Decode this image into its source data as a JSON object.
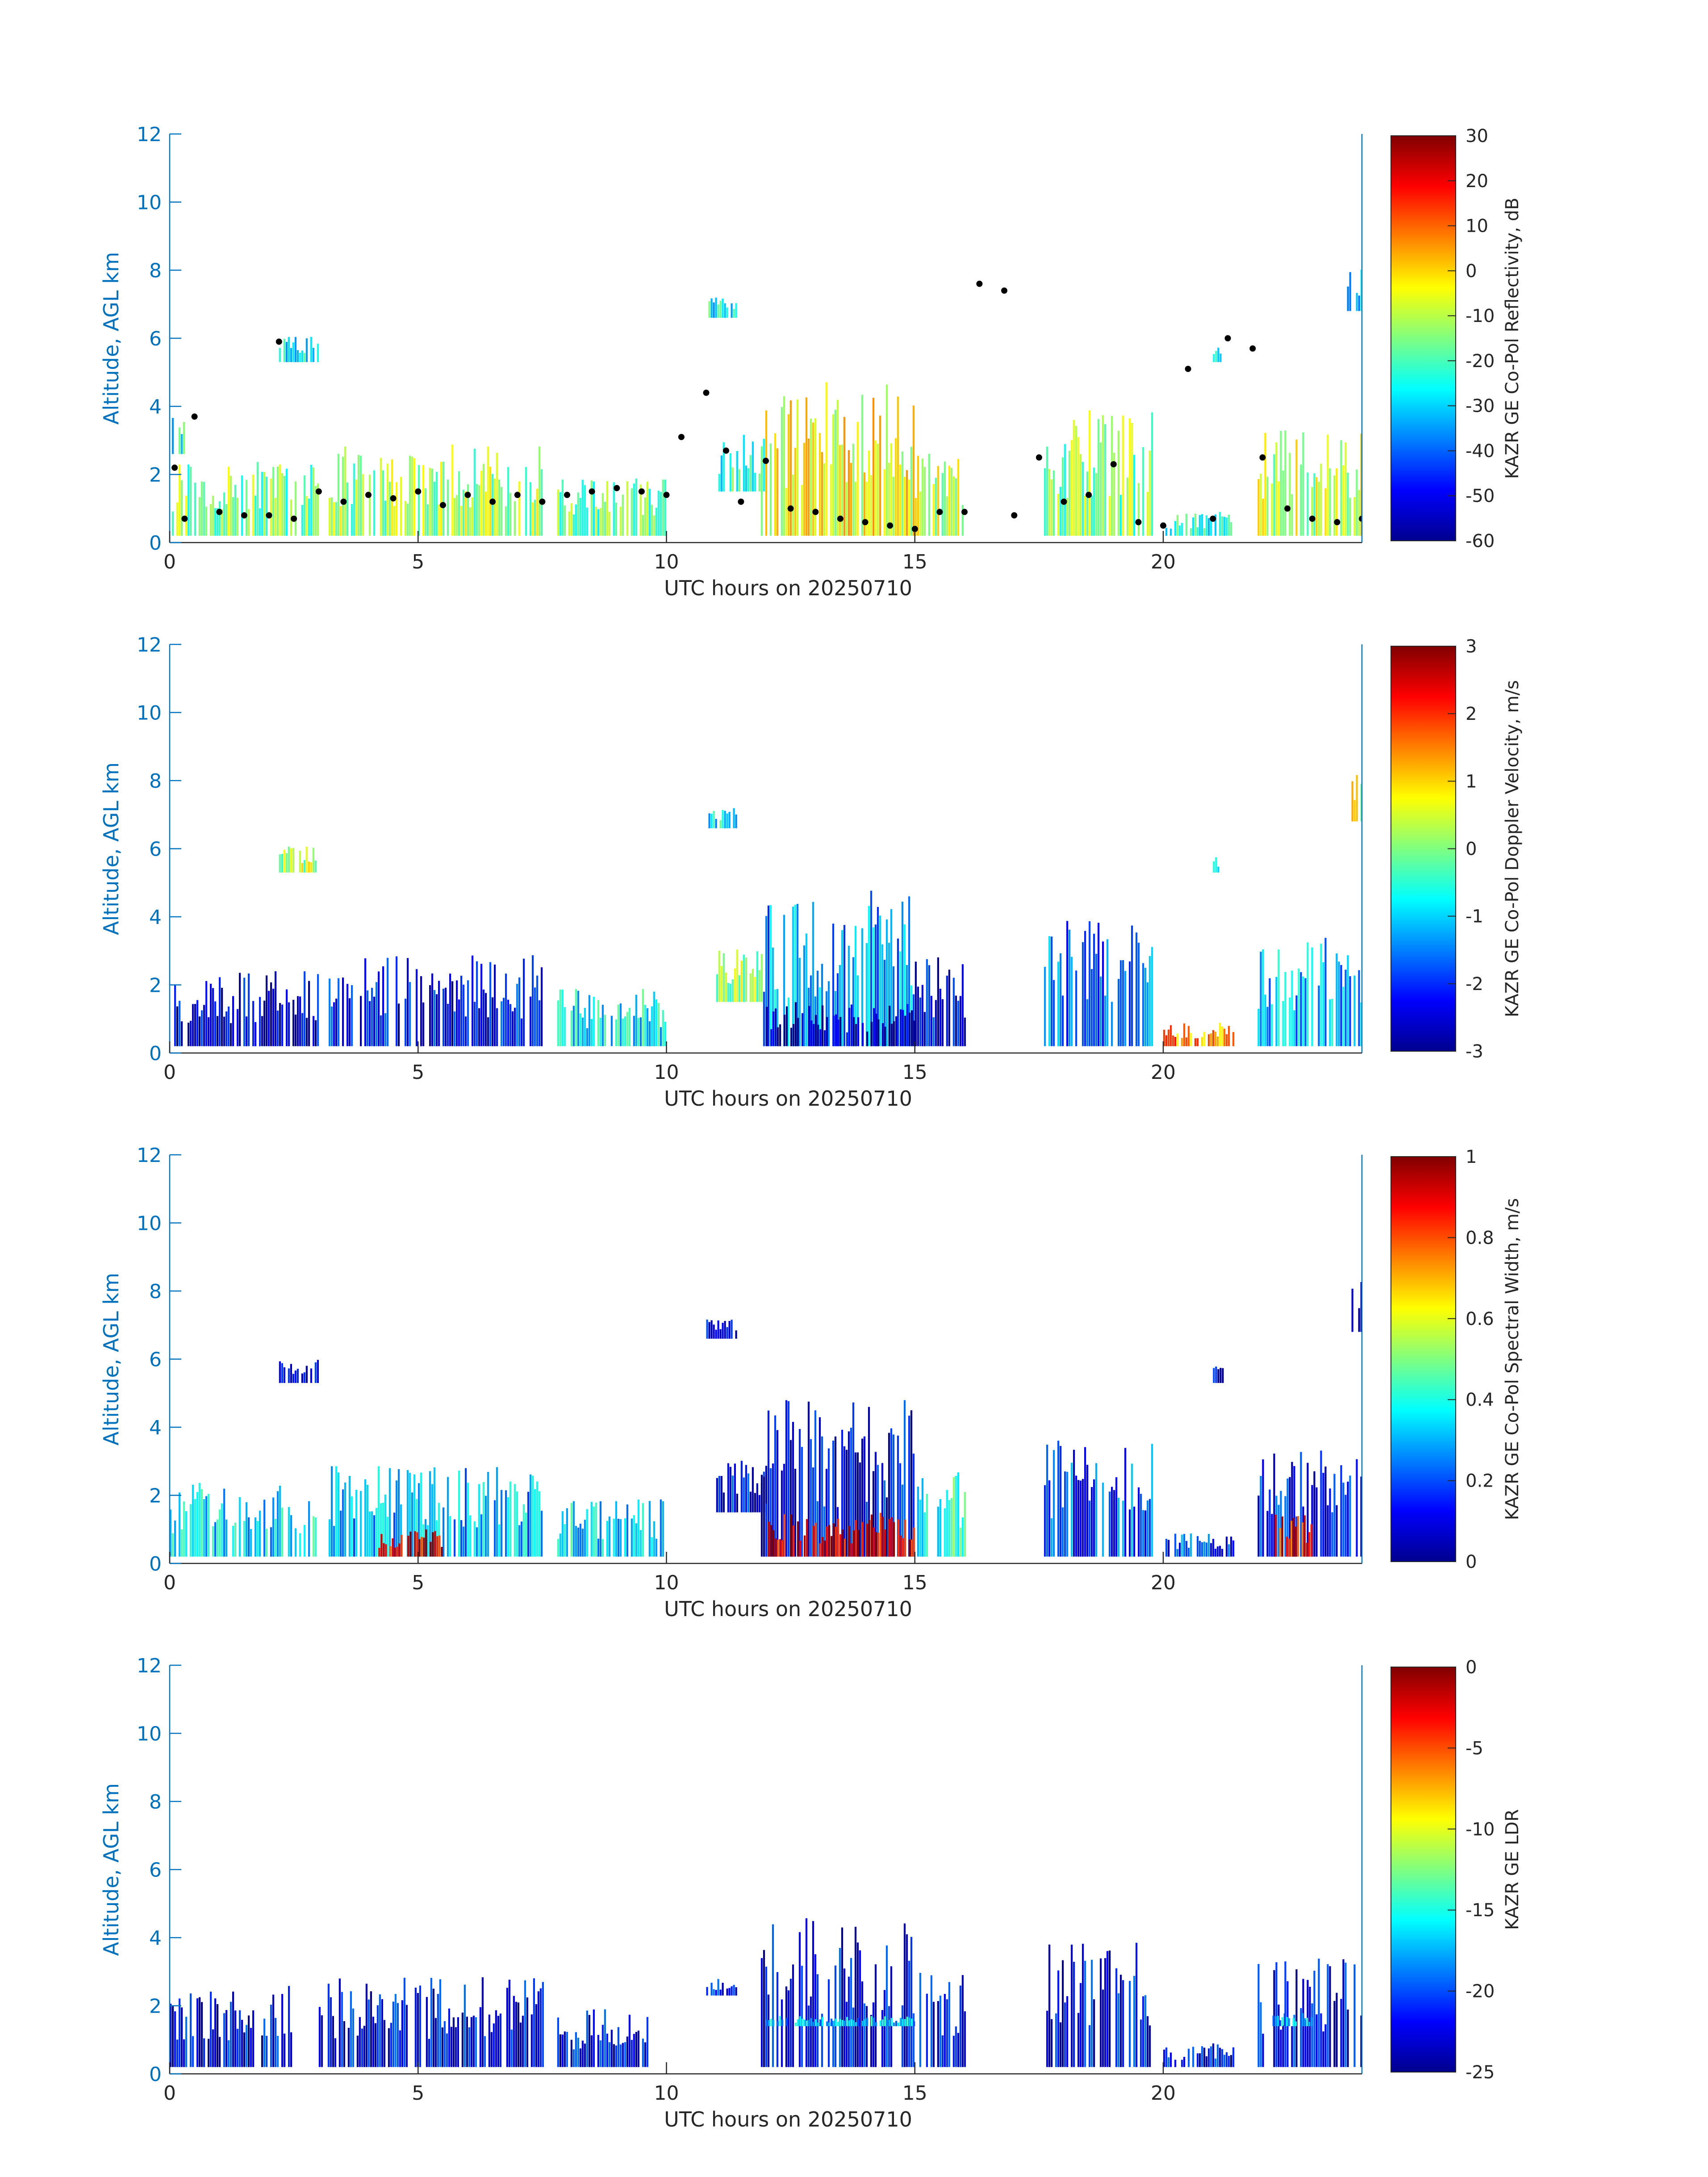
{
  "chart_data": [
    {
      "type": "heatmap",
      "x_label": "UTC hours on 20250710",
      "y_label": "Altitude, AGL km",
      "x_ticks": [
        0,
        5,
        10,
        15,
        20
      ],
      "y_ticks": [
        0,
        2,
        4,
        6,
        8,
        10,
        12
      ],
      "xlim": [
        0,
        24
      ],
      "ylim": [
        0,
        12
      ],
      "colorbar": {
        "label": "KAZR GE Co-Pol Reflectivity, dB",
        "ticks": [
          30,
          20,
          10,
          0,
          -10,
          -20,
          -30,
          -40,
          -50,
          -60
        ],
        "range": [
          -60,
          30
        ],
        "colormap": "jet"
      },
      "overlay": "black dots marking cloud base",
      "cloud_regions": [
        {
          "x0": 0.0,
          "x1": 0.3,
          "y0": 2.6,
          "y1": 3.7,
          "value": -25
        },
        {
          "x0": 0.0,
          "x1": 3.0,
          "y0": 0.2,
          "y1": 2.4,
          "value": -15
        },
        {
          "x0": 2.2,
          "x1": 3.0,
          "y0": 5.3,
          "y1": 6.1,
          "value": -28
        },
        {
          "x0": 3.2,
          "x1": 7.5,
          "y0": 0.2,
          "y1": 2.9,
          "value": -12
        },
        {
          "x0": 7.8,
          "x1": 10.0,
          "y0": 0.2,
          "y1": 1.9,
          "value": -18
        },
        {
          "x0": 10.8,
          "x1": 11.4,
          "y0": 6.6,
          "y1": 7.2,
          "value": -25
        },
        {
          "x0": 11.0,
          "x1": 12.0,
          "y0": 1.5,
          "y1": 3.2,
          "value": -22
        },
        {
          "x0": 11.9,
          "x1": 15.0,
          "y0": 0.2,
          "y1": 4.8,
          "value": -5
        },
        {
          "x0": 15.0,
          "x1": 16.0,
          "y0": 0.2,
          "y1": 3.0,
          "value": -10
        },
        {
          "x0": 17.6,
          "x1": 19.8,
          "y0": 0.2,
          "y1": 3.9,
          "value": -15
        },
        {
          "x0": 20.0,
          "x1": 21.4,
          "y0": 0.2,
          "y1": 0.9,
          "value": -25
        },
        {
          "x0": 21.0,
          "x1": 21.2,
          "y0": 5.3,
          "y1": 5.8,
          "value": -25
        },
        {
          "x0": 21.9,
          "x1": 24.0,
          "y0": 0.2,
          "y1": 3.4,
          "value": -10
        },
        {
          "x0": 23.7,
          "x1": 24.0,
          "y0": 6.8,
          "y1": 8.3,
          "value": -28
        }
      ],
      "cloud_base_points": [
        {
          "x": 0.1,
          "y": 2.2
        },
        {
          "x": 0.5,
          "y": 3.7
        },
        {
          "x": 0.3,
          "y": 0.7
        },
        {
          "x": 1.0,
          "y": 0.9
        },
        {
          "x": 1.5,
          "y": 0.8
        },
        {
          "x": 2.0,
          "y": 0.8
        },
        {
          "x": 2.2,
          "y": 5.9
        },
        {
          "x": 2.5,
          "y": 0.7
        },
        {
          "x": 3.0,
          "y": 1.5
        },
        {
          "x": 3.5,
          "y": 1.2
        },
        {
          "x": 4.0,
          "y": 1.4
        },
        {
          "x": 4.5,
          "y": 1.3
        },
        {
          "x": 5.0,
          "y": 1.5
        },
        {
          "x": 5.5,
          "y": 1.1
        },
        {
          "x": 6.0,
          "y": 1.4
        },
        {
          "x": 6.5,
          "y": 1.2
        },
        {
          "x": 7.0,
          "y": 1.4
        },
        {
          "x": 7.5,
          "y": 1.2
        },
        {
          "x": 8.0,
          "y": 1.4
        },
        {
          "x": 8.5,
          "y": 1.5
        },
        {
          "x": 9.0,
          "y": 1.6
        },
        {
          "x": 9.5,
          "y": 1.5
        },
        {
          "x": 10.0,
          "y": 1.4
        },
        {
          "x": 10.3,
          "y": 3.1
        },
        {
          "x": 10.8,
          "y": 4.4
        },
        {
          "x": 11.2,
          "y": 2.7
        },
        {
          "x": 11.5,
          "y": 1.2
        },
        {
          "x": 12.0,
          "y": 2.4
        },
        {
          "x": 12.5,
          "y": 1.0
        },
        {
          "x": 13.0,
          "y": 0.9
        },
        {
          "x": 13.5,
          "y": 0.7
        },
        {
          "x": 14.0,
          "y": 0.6
        },
        {
          "x": 14.5,
          "y": 0.5
        },
        {
          "x": 15.0,
          "y": 0.4
        },
        {
          "x": 15.5,
          "y": 0.9
        },
        {
          "x": 16.0,
          "y": 0.9
        },
        {
          "x": 16.3,
          "y": 7.6
        },
        {
          "x": 16.8,
          "y": 7.4
        },
        {
          "x": 17.0,
          "y": 0.8
        },
        {
          "x": 17.5,
          "y": 2.5
        },
        {
          "x": 18.0,
          "y": 1.2
        },
        {
          "x": 18.5,
          "y": 1.4
        },
        {
          "x": 19.0,
          "y": 2.3
        },
        {
          "x": 19.5,
          "y": 0.6
        },
        {
          "x": 20.0,
          "y": 0.5
        },
        {
          "x": 20.5,
          "y": 5.1
        },
        {
          "x": 21.0,
          "y": 0.7
        },
        {
          "x": 21.3,
          "y": 6.0
        },
        {
          "x": 21.8,
          "y": 5.7
        },
        {
          "x": 22.0,
          "y": 2.5
        },
        {
          "x": 22.5,
          "y": 1.0
        },
        {
          "x": 23.0,
          "y": 0.7
        },
        {
          "x": 23.5,
          "y": 0.6
        },
        {
          "x": 24.0,
          "y": 0.7
        }
      ]
    },
    {
      "type": "heatmap",
      "x_label": "UTC hours on 20250710",
      "y_label": "Altitude, AGL km",
      "x_ticks": [
        0,
        5,
        10,
        15,
        20
      ],
      "y_ticks": [
        0,
        2,
        4,
        6,
        8,
        10,
        12
      ],
      "xlim": [
        0,
        24
      ],
      "ylim": [
        0,
        12
      ],
      "colorbar": {
        "label": "KAZR GE Co-Pol Doppler Velocity, m/s",
        "ticks": [
          3,
          2,
          1,
          0,
          -1,
          -2,
          -3
        ],
        "range": [
          -3,
          3
        ],
        "colormap": "jet"
      },
      "cloud_regions": [
        {
          "x0": 0.0,
          "x1": 3.0,
          "y0": 0.2,
          "y1": 2.4,
          "value": -2.4
        },
        {
          "x0": 2.2,
          "x1": 3.0,
          "y0": 5.3,
          "y1": 6.1,
          "value": 0.3
        },
        {
          "x0": 3.2,
          "x1": 7.5,
          "y0": 0.2,
          "y1": 2.9,
          "value": -2.2
        },
        {
          "x0": 7.8,
          "x1": 10.0,
          "y0": 0.2,
          "y1": 1.9,
          "value": -0.8
        },
        {
          "x0": 10.8,
          "x1": 11.4,
          "y0": 6.6,
          "y1": 7.2,
          "value": -0.8
        },
        {
          "x0": 11.0,
          "x1": 12.0,
          "y0": 1.5,
          "y1": 3.2,
          "value": 0.2
        },
        {
          "x0": 11.9,
          "x1": 15.0,
          "y0": 0.2,
          "y1": 4.8,
          "value": -1.3
        },
        {
          "x0": 12.0,
          "x1": 15.0,
          "y0": 0.2,
          "y1": 1.5,
          "value": -2.8
        },
        {
          "x0": 15.0,
          "x1": 16.0,
          "y0": 0.2,
          "y1": 3.0,
          "value": -2.3
        },
        {
          "x0": 17.6,
          "x1": 19.8,
          "y0": 0.2,
          "y1": 3.9,
          "value": -1.6
        },
        {
          "x0": 20.0,
          "x1": 21.4,
          "y0": 0.2,
          "y1": 0.9,
          "value": 1.4
        },
        {
          "x0": 21.0,
          "x1": 21.2,
          "y0": 5.3,
          "y1": 5.8,
          "value": -0.6
        },
        {
          "x0": 21.9,
          "x1": 24.0,
          "y0": 0.2,
          "y1": 3.4,
          "value": -1.2
        },
        {
          "x0": 23.7,
          "x1": 24.0,
          "y0": 6.8,
          "y1": 8.3,
          "value": 0.6
        }
      ]
    },
    {
      "type": "heatmap",
      "x_label": "UTC hours on 20250710",
      "y_label": "Altitude, AGL km",
      "x_ticks": [
        0,
        5,
        10,
        15,
        20
      ],
      "y_ticks": [
        0,
        2,
        4,
        6,
        8,
        10,
        12
      ],
      "xlim": [
        0,
        24
      ],
      "ylim": [
        0,
        12
      ],
      "colorbar": {
        "label": "KAZR GE Co-Pol Spectral Width, m/s",
        "ticks": [
          1,
          0.8,
          0.6,
          0.4,
          0.2,
          0
        ],
        "range": [
          0,
          1
        ],
        "colormap": "jet"
      },
      "cloud_regions": [
        {
          "x0": 0.0,
          "x1": 3.0,
          "y0": 0.2,
          "y1": 2.4,
          "value": 0.35
        },
        {
          "x0": 2.2,
          "x1": 3.0,
          "y0": 5.3,
          "y1": 6.1,
          "value": 0.1
        },
        {
          "x0": 3.2,
          "x1": 7.5,
          "y0": 0.2,
          "y1": 2.9,
          "value": 0.3
        },
        {
          "x0": 4.2,
          "x1": 5.5,
          "y0": 0.2,
          "y1": 1.0,
          "value": 0.9
        },
        {
          "x0": 7.8,
          "x1": 10.0,
          "y0": 0.2,
          "y1": 1.9,
          "value": 0.35
        },
        {
          "x0": 10.8,
          "x1": 11.4,
          "y0": 6.6,
          "y1": 7.2,
          "value": 0.1
        },
        {
          "x0": 11.0,
          "x1": 12.0,
          "y0": 1.5,
          "y1": 3.2,
          "value": 0.12
        },
        {
          "x0": 11.9,
          "x1": 15.0,
          "y0": 0.2,
          "y1": 4.8,
          "value": 0.12
        },
        {
          "x0": 12.0,
          "x1": 15.0,
          "y0": 0.2,
          "y1": 1.5,
          "value": 0.92
        },
        {
          "x0": 15.0,
          "x1": 16.0,
          "y0": 0.2,
          "y1": 3.0,
          "value": 0.4
        },
        {
          "x0": 17.6,
          "x1": 19.8,
          "y0": 0.2,
          "y1": 3.9,
          "value": 0.2
        },
        {
          "x0": 20.0,
          "x1": 21.4,
          "y0": 0.2,
          "y1": 0.9,
          "value": 0.2
        },
        {
          "x0": 21.0,
          "x1": 21.2,
          "y0": 5.3,
          "y1": 5.8,
          "value": 0.1
        },
        {
          "x0": 21.9,
          "x1": 24.0,
          "y0": 0.2,
          "y1": 3.4,
          "value": 0.15
        },
        {
          "x0": 22.2,
          "x1": 23.0,
          "y0": 0.2,
          "y1": 1.5,
          "value": 0.85
        },
        {
          "x0": 23.7,
          "x1": 24.0,
          "y0": 6.8,
          "y1": 8.3,
          "value": 0.1
        }
      ]
    },
    {
      "type": "heatmap",
      "x_label": "UTC hours on 20250710",
      "y_label": "Altitude, AGL km",
      "x_ticks": [
        0,
        5,
        10,
        15,
        20
      ],
      "y_ticks": [
        0,
        2,
        4,
        6,
        8,
        10,
        12
      ],
      "xlim": [
        0,
        24
      ],
      "ylim": [
        0,
        12
      ],
      "colorbar": {
        "label": "KAZR GE LDR",
        "ticks": [
          0,
          -5,
          -10,
          -15,
          -20,
          -25
        ],
        "range": [
          -25,
          0
        ],
        "colormap": "jet"
      },
      "cloud_regions": [
        {
          "x0": 0.0,
          "x1": 2.5,
          "y0": 0.2,
          "y1": 2.6,
          "value": -22
        },
        {
          "x0": 3.0,
          "x1": 7.5,
          "y0": 0.2,
          "y1": 2.9,
          "value": -22
        },
        {
          "x0": 7.8,
          "x1": 9.6,
          "y0": 0.2,
          "y1": 1.9,
          "value": -22
        },
        {
          "x0": 10.8,
          "x1": 11.4,
          "y0": 2.3,
          "y1": 2.8,
          "value": -22
        },
        {
          "x0": 11.9,
          "x1": 15.0,
          "y0": 0.2,
          "y1": 4.6,
          "value": -22
        },
        {
          "x0": 12.0,
          "x1": 15.0,
          "y0": 1.4,
          "y1": 1.7,
          "value": -17
        },
        {
          "x0": 15.0,
          "x1": 16.0,
          "y0": 0.2,
          "y1": 3.0,
          "value": -22
        },
        {
          "x0": 17.6,
          "x1": 19.8,
          "y0": 0.2,
          "y1": 3.9,
          "value": -22
        },
        {
          "x0": 20.0,
          "x1": 21.4,
          "y0": 0.2,
          "y1": 0.9,
          "value": -22
        },
        {
          "x0": 21.9,
          "x1": 24.0,
          "y0": 0.2,
          "y1": 3.4,
          "value": -22
        },
        {
          "x0": 22.2,
          "x1": 23.0,
          "y0": 1.4,
          "y1": 1.8,
          "value": -17
        }
      ]
    }
  ]
}
